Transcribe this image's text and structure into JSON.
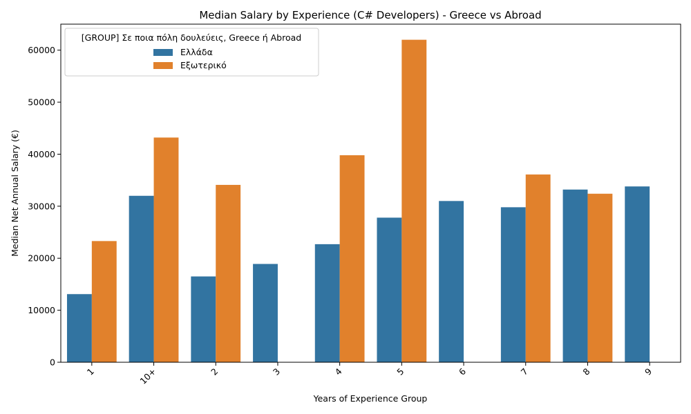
{
  "chart_data": {
    "type": "bar",
    "title": "Median Salary by Experience (C# Developers) - Greece vs Abroad",
    "xlabel": "Years of Experience Group",
    "ylabel": "Median Net Annual Salary (€)",
    "ylim": [
      0,
      65000
    ],
    "yticks": [
      "0",
      "10000",
      "20000",
      "30000",
      "40000",
      "50000",
      "60000"
    ],
    "categories": [
      "1",
      "10+",
      "2",
      "3",
      "4",
      "5",
      "6",
      "7",
      "8",
      "9"
    ],
    "legend": {
      "title": "[GROUP] Σε ποια πόλη δουλεύεις, Greece ή Abroad",
      "position": "top-left"
    },
    "grid": false,
    "series": [
      {
        "name": "Ελλάδα",
        "color": "#3274a1",
        "values": [
          13100,
          32000,
          16500,
          18900,
          22700,
          27800,
          31000,
          29800,
          33200,
          33800
        ]
      },
      {
        "name": "Εξωτερικό",
        "color": "#e1812c",
        "values": [
          23300,
          43200,
          34100,
          null,
          39800,
          62000,
          null,
          36100,
          32400,
          null
        ]
      }
    ]
  }
}
